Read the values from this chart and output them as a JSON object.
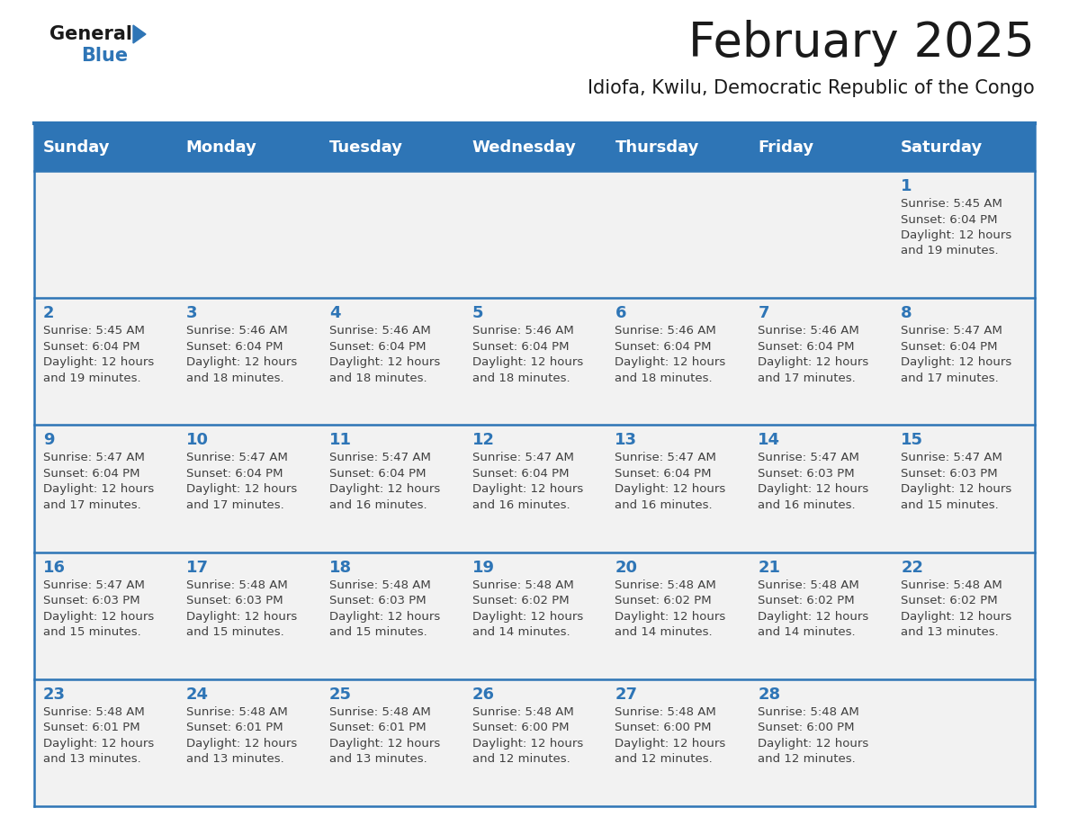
{
  "title": "February 2025",
  "subtitle": "Idiofa, Kwilu, Democratic Republic of the Congo",
  "days_of_week": [
    "Sunday",
    "Monday",
    "Tuesday",
    "Wednesday",
    "Thursday",
    "Friday",
    "Saturday"
  ],
  "header_bg": "#2E75B6",
  "header_text_color": "#FFFFFF",
  "cell_bg": "#F2F2F2",
  "day_number_color": "#2E75B6",
  "info_text_color": "#404040",
  "border_color": "#2E75B6",
  "title_color": "#1A1A1A",
  "subtitle_color": "#1A1A1A",
  "logo_text1": "General",
  "logo_text2": "Blue",
  "logo_color1": "#1A1A1A",
  "logo_color2": "#2E75B6",
  "calendar_data": [
    [
      null,
      null,
      null,
      null,
      null,
      null,
      {
        "day": 1,
        "sunrise": "5:45 AM",
        "sunset": "6:04 PM",
        "daylight_line1": "12 hours",
        "daylight_line2": "and 19 minutes."
      }
    ],
    [
      {
        "day": 2,
        "sunrise": "5:45 AM",
        "sunset": "6:04 PM",
        "daylight_line1": "12 hours",
        "daylight_line2": "and 19 minutes."
      },
      {
        "day": 3,
        "sunrise": "5:46 AM",
        "sunset": "6:04 PM",
        "daylight_line1": "12 hours",
        "daylight_line2": "and 18 minutes."
      },
      {
        "day": 4,
        "sunrise": "5:46 AM",
        "sunset": "6:04 PM",
        "daylight_line1": "12 hours",
        "daylight_line2": "and 18 minutes."
      },
      {
        "day": 5,
        "sunrise": "5:46 AM",
        "sunset": "6:04 PM",
        "daylight_line1": "12 hours",
        "daylight_line2": "and 18 minutes."
      },
      {
        "day": 6,
        "sunrise": "5:46 AM",
        "sunset": "6:04 PM",
        "daylight_line1": "12 hours",
        "daylight_line2": "and 18 minutes."
      },
      {
        "day": 7,
        "sunrise": "5:46 AM",
        "sunset": "6:04 PM",
        "daylight_line1": "12 hours",
        "daylight_line2": "and 17 minutes."
      },
      {
        "day": 8,
        "sunrise": "5:47 AM",
        "sunset": "6:04 PM",
        "daylight_line1": "12 hours",
        "daylight_line2": "and 17 minutes."
      }
    ],
    [
      {
        "day": 9,
        "sunrise": "5:47 AM",
        "sunset": "6:04 PM",
        "daylight_line1": "12 hours",
        "daylight_line2": "and 17 minutes."
      },
      {
        "day": 10,
        "sunrise": "5:47 AM",
        "sunset": "6:04 PM",
        "daylight_line1": "12 hours",
        "daylight_line2": "and 17 minutes."
      },
      {
        "day": 11,
        "sunrise": "5:47 AM",
        "sunset": "6:04 PM",
        "daylight_line1": "12 hours",
        "daylight_line2": "and 16 minutes."
      },
      {
        "day": 12,
        "sunrise": "5:47 AM",
        "sunset": "6:04 PM",
        "daylight_line1": "12 hours",
        "daylight_line2": "and 16 minutes."
      },
      {
        "day": 13,
        "sunrise": "5:47 AM",
        "sunset": "6:04 PM",
        "daylight_line1": "12 hours",
        "daylight_line2": "and 16 minutes."
      },
      {
        "day": 14,
        "sunrise": "5:47 AM",
        "sunset": "6:03 PM",
        "daylight_line1": "12 hours",
        "daylight_line2": "and 16 minutes."
      },
      {
        "day": 15,
        "sunrise": "5:47 AM",
        "sunset": "6:03 PM",
        "daylight_line1": "12 hours",
        "daylight_line2": "and 15 minutes."
      }
    ],
    [
      {
        "day": 16,
        "sunrise": "5:47 AM",
        "sunset": "6:03 PM",
        "daylight_line1": "12 hours",
        "daylight_line2": "and 15 minutes."
      },
      {
        "day": 17,
        "sunrise": "5:48 AM",
        "sunset": "6:03 PM",
        "daylight_line1": "12 hours",
        "daylight_line2": "and 15 minutes."
      },
      {
        "day": 18,
        "sunrise": "5:48 AM",
        "sunset": "6:03 PM",
        "daylight_line1": "12 hours",
        "daylight_line2": "and 15 minutes."
      },
      {
        "day": 19,
        "sunrise": "5:48 AM",
        "sunset": "6:02 PM",
        "daylight_line1": "12 hours",
        "daylight_line2": "and 14 minutes."
      },
      {
        "day": 20,
        "sunrise": "5:48 AM",
        "sunset": "6:02 PM",
        "daylight_line1": "12 hours",
        "daylight_line2": "and 14 minutes."
      },
      {
        "day": 21,
        "sunrise": "5:48 AM",
        "sunset": "6:02 PM",
        "daylight_line1": "12 hours",
        "daylight_line2": "and 14 minutes."
      },
      {
        "day": 22,
        "sunrise": "5:48 AM",
        "sunset": "6:02 PM",
        "daylight_line1": "12 hours",
        "daylight_line2": "and 13 minutes."
      }
    ],
    [
      {
        "day": 23,
        "sunrise": "5:48 AM",
        "sunset": "6:01 PM",
        "daylight_line1": "12 hours",
        "daylight_line2": "and 13 minutes."
      },
      {
        "day": 24,
        "sunrise": "5:48 AM",
        "sunset": "6:01 PM",
        "daylight_line1": "12 hours",
        "daylight_line2": "and 13 minutes."
      },
      {
        "day": 25,
        "sunrise": "5:48 AM",
        "sunset": "6:01 PM",
        "daylight_line1": "12 hours",
        "daylight_line2": "and 13 minutes."
      },
      {
        "day": 26,
        "sunrise": "5:48 AM",
        "sunset": "6:00 PM",
        "daylight_line1": "12 hours",
        "daylight_line2": "and 12 minutes."
      },
      {
        "day": 27,
        "sunrise": "5:48 AM",
        "sunset": "6:00 PM",
        "daylight_line1": "12 hours",
        "daylight_line2": "and 12 minutes."
      },
      {
        "day": 28,
        "sunrise": "5:48 AM",
        "sunset": "6:00 PM",
        "daylight_line1": "12 hours",
        "daylight_line2": "and 12 minutes."
      },
      null
    ]
  ]
}
